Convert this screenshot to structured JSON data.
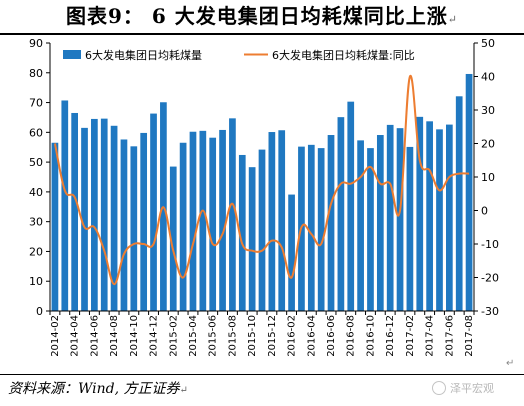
{
  "page": {
    "title": "图表9：  6 大发电集团日均耗煤同比上涨",
    "return_mark": "↵",
    "source": "资料来源：Wind, 方正证券",
    "watermark": "泽平宏观"
  },
  "colors": {
    "bar": "#1f78c1",
    "line": "#ed7d31",
    "axis": "#000000"
  },
  "chart_data": {
    "type": "bar",
    "title": "",
    "legend_position": "top",
    "grid": false,
    "categories": [
      "2014-02",
      "2014-03",
      "2014-04",
      "2014-05",
      "2014-06",
      "2014-07",
      "2014-08",
      "2014-09",
      "2014-10",
      "2014-11",
      "2014-12",
      "2015-01",
      "2015-02",
      "2015-03",
      "2015-04",
      "2015-05",
      "2015-06",
      "2015-07",
      "2015-08",
      "2015-09",
      "2015-10",
      "2015-11",
      "2015-12",
      "2016-01",
      "2016-02",
      "2016-03",
      "2016-04",
      "2016-05",
      "2016-06",
      "2016-07",
      "2016-08",
      "2016-09",
      "2016-10",
      "2016-11",
      "2016-12",
      "2017-01",
      "2017-02",
      "2017-03",
      "2017-04",
      "2017-05",
      "2017-06",
      "2017-07",
      "2017-08"
    ],
    "x_tick_labels": [
      "2014-02",
      "2014-04",
      "2014-06",
      "2014-08",
      "2014-10",
      "2014-12",
      "2015-02",
      "2015-04",
      "2015-06",
      "2015-08",
      "2015-10",
      "2015-12",
      "2016-02",
      "2016-04",
      "2016-06",
      "2016-08",
      "2016-10",
      "2016-12",
      "2017-02",
      "2017-04",
      "2017-06",
      "2017-08"
    ],
    "y_left": {
      "min": 0,
      "max": 90,
      "ticks": [
        0,
        10,
        20,
        30,
        40,
        50,
        60,
        70,
        80,
        90
      ]
    },
    "y_right": {
      "min": -30,
      "max": 50,
      "ticks": [
        -30,
        -20,
        -10,
        0,
        10,
        20,
        30,
        40,
        50
      ]
    },
    "series": [
      {
        "name": "6大发电集团日均耗煤量",
        "type": "bar",
        "axis": "left",
        "values": [
          56.5,
          70.7,
          66.5,
          61.5,
          64.5,
          64.6,
          62.2,
          57.6,
          55.3,
          59.8,
          66.3,
          70.1,
          48.5,
          56.5,
          60.2,
          60.5,
          58.2,
          60.8,
          64.7,
          52.4,
          48.3,
          54.2,
          60.1,
          60.7,
          39.1,
          55.2,
          55.8,
          54.7,
          59.1,
          65.1,
          70.3,
          57.3,
          54.7,
          59.1,
          62.5,
          61.4,
          55.1,
          65.2,
          63.7,
          61.0,
          62.6,
          72.1,
          79.6
        ]
      },
      {
        "name": "6大发电集团日均耗煤量:同比",
        "type": "line",
        "axis": "right",
        "values": [
          20,
          6,
          4,
          -5,
          -5,
          -12,
          -22,
          -13,
          -10,
          -10,
          -10,
          1,
          -12,
          -20,
          -10,
          0,
          -10,
          -7,
          2,
          -10,
          -12,
          -12,
          -9,
          -11,
          -20,
          -5,
          -7,
          -10,
          2,
          8,
          8,
          10,
          13,
          8,
          8,
          0,
          40,
          15,
          12,
          6,
          10,
          11,
          11
        ]
      }
    ]
  }
}
